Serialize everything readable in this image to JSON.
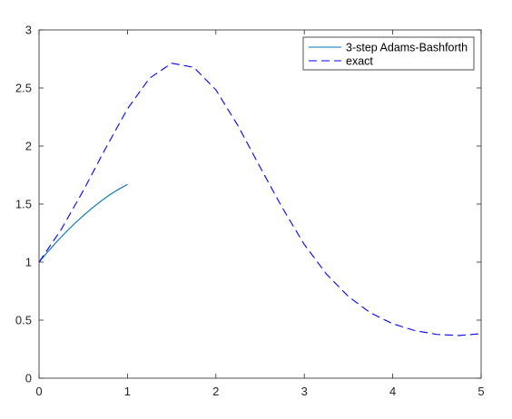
{
  "chart_data": {
    "type": "line",
    "title": "",
    "xlabel": "",
    "ylabel": "",
    "xlim": [
      0,
      5
    ],
    "ylim": [
      0,
      3
    ],
    "grid": false,
    "legend_position": "top-right",
    "x_ticks": [
      "0",
      "1",
      "2",
      "3",
      "4",
      "5"
    ],
    "y_ticks": [
      "0",
      "0.5",
      "1",
      "1.5",
      "2",
      "2.5",
      "3"
    ],
    "series": [
      {
        "name": "3-step Adams-Bashforth",
        "color": "#0072BD",
        "style": "solid",
        "x": [
          0,
          0.1,
          0.2,
          0.3,
          0.4,
          0.5,
          0.6,
          0.7,
          0.8,
          0.9,
          1.0
        ],
        "y": [
          1.0,
          1.09,
          1.175,
          1.255,
          1.33,
          1.4,
          1.465,
          1.525,
          1.58,
          1.627,
          1.67
        ]
      },
      {
        "name": "exact",
        "color": "#0000FF",
        "style": "dashed",
        "x": [
          0,
          0.25,
          0.5,
          0.75,
          1.0,
          1.25,
          1.5,
          1.75,
          2.0,
          2.25,
          2.5,
          2.75,
          3.0,
          3.25,
          3.5,
          3.75,
          4.0,
          4.25,
          4.5,
          4.75,
          5.0
        ],
        "y": [
          1.0,
          1.28,
          1.615,
          1.976,
          2.32,
          2.584,
          2.713,
          2.678,
          2.484,
          2.175,
          1.818,
          1.47,
          1.152,
          0.897,
          0.703,
          0.562,
          0.469,
          0.41,
          0.377,
          0.368,
          0.383
        ]
      }
    ]
  }
}
